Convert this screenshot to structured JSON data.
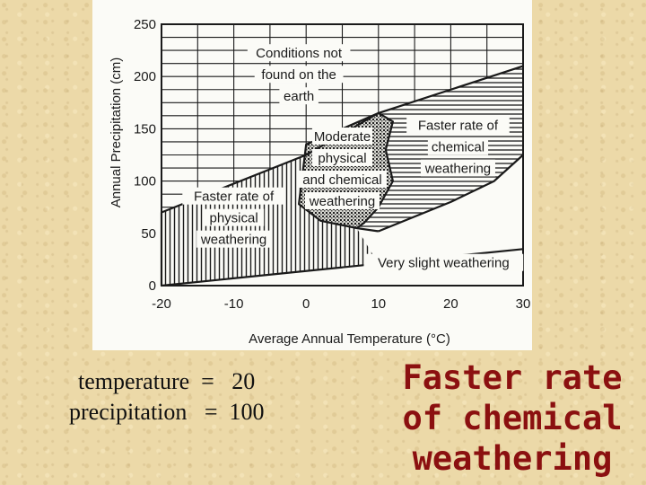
{
  "chart_data": {
    "type": "area",
    "xlabel": "Average Annual Temperature (°C)",
    "ylabel": "Annual Precipitation (cm)",
    "xlim": [
      -20,
      30
    ],
    "ylim": [
      0,
      250
    ],
    "x_ticks": [
      -20,
      -10,
      0,
      10,
      20,
      30
    ],
    "y_ticks": [
      0,
      50,
      100,
      150,
      200,
      250
    ],
    "grid": true,
    "boundaries": {
      "upper_limit": [
        [
          -20,
          70
        ],
        [
          0,
          125
        ],
        [
          10,
          165
        ],
        [
          30,
          210
        ]
      ],
      "lower_limit": [
        [
          -20,
          0
        ],
        [
          30,
          35
        ]
      ],
      "moderate_left": [
        [
          10,
          165
        ],
        [
          0,
          135
        ],
        [
          -1,
          78
        ],
        [
          2,
          62
        ],
        [
          7,
          55
        ],
        [
          10,
          52
        ]
      ],
      "moderate_right": [
        [
          10,
          165
        ],
        [
          12,
          157
        ],
        [
          11,
          130
        ],
        [
          12,
          100
        ],
        [
          10,
          75
        ],
        [
          8,
          60
        ],
        [
          7,
          55
        ]
      ],
      "chemical_lower": [
        [
          10,
          52
        ],
        [
          20,
          80
        ],
        [
          26,
          100
        ],
        [
          30,
          125
        ]
      ]
    },
    "regions": [
      {
        "name": "Conditions not found on the earth",
        "lines": [
          "Conditions not",
          "found on the",
          "earth"
        ],
        "fill": "none",
        "label_at": [
          -1,
          200
        ]
      },
      {
        "name": "Faster rate of physical weathering",
        "lines": [
          "Faster rate of",
          "physical",
          "weathering"
        ],
        "fill": "vertical-hatch",
        "label_at": [
          -10,
          63
        ]
      },
      {
        "name": "Moderate physical and chemical weathering",
        "lines": [
          "Moderate",
          "physical",
          "and chemical",
          "weathering"
        ],
        "fill": "stipple",
        "label_at": [
          5,
          110
        ]
      },
      {
        "name": "Faster rate of chemical weathering",
        "lines": [
          "Faster rate of",
          "chemical",
          "weathering"
        ],
        "fill": "horizontal-hatch",
        "label_at": [
          21,
          131
        ]
      },
      {
        "name": "Very slight weathering",
        "lines": [
          "Very slight weathering"
        ],
        "fill": "none",
        "label_at": [
          19,
          20
        ]
      }
    ]
  },
  "calculation": {
    "temperature_line": "temperature  =   20",
    "precipitation_line": "precipitation   =  100"
  },
  "answer": {
    "lines": [
      "Faster rate",
      "of chemical",
      "weathering"
    ]
  },
  "colors": {
    "background": "#ecd9a8",
    "figure": "#fbfbf7",
    "ink": "#1a1a1a",
    "answer": "#8b1010"
  }
}
